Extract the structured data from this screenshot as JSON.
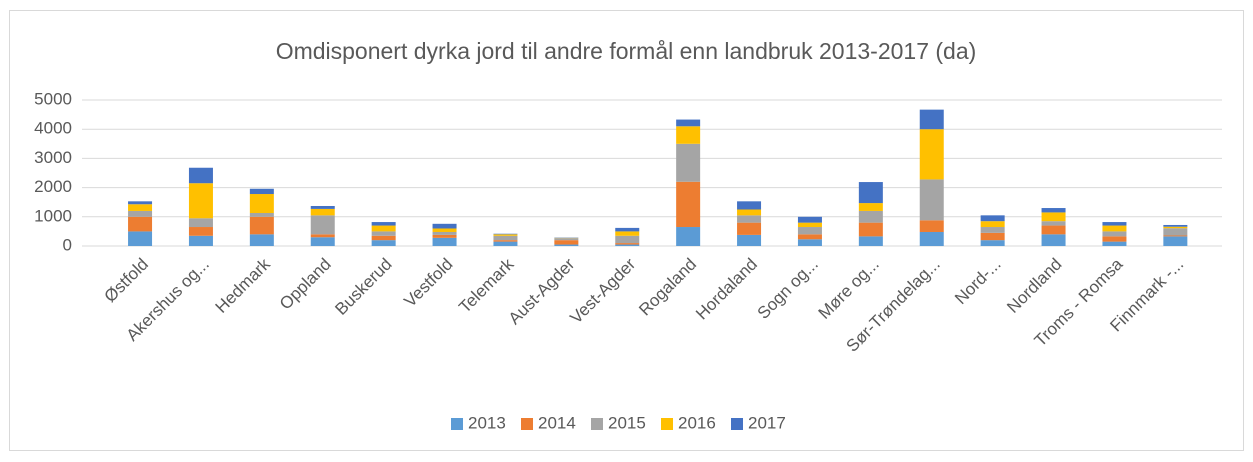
{
  "chart_data": {
    "type": "stacked_bar",
    "title": "Omdisponert dyrka jord til andre formål enn landbruk 2013-2017 (da)",
    "categories": [
      "Østfold",
      "Akershus og...",
      "Hedmark",
      "Oppland",
      "Buskerud",
      "Vestfold",
      "Telemark",
      "Aust-Agder",
      "Vest-Agder",
      "Rogaland",
      "Hordaland",
      "Sogn og...",
      "Møre og...",
      "Sør-Trøndelag...",
      "Nord-...",
      "Nordland",
      "Troms - Romsa",
      "Finnmark -..."
    ],
    "series": [
      {
        "name": "2013",
        "color": "#5b9bd5",
        "values": [
          500,
          350,
          400,
          300,
          200,
          280,
          150,
          50,
          50,
          650,
          380,
          230,
          330,
          480,
          200,
          400,
          150,
          330
        ]
      },
      {
        "name": "2014",
        "color": "#ed7d31",
        "values": [
          500,
          300,
          600,
          100,
          150,
          100,
          50,
          150,
          50,
          1550,
          420,
          170,
          470,
          400,
          250,
          300,
          180,
          30
        ]
      },
      {
        "name": "2015",
        "color": "#a5a5a5",
        "values": [
          200,
          300,
          130,
          650,
          150,
          100,
          150,
          70,
          250,
          1300,
          250,
          250,
          400,
          1400,
          200,
          150,
          170,
          250
        ]
      },
      {
        "name": "2016",
        "color": "#ffc000",
        "values": [
          230,
          1200,
          650,
          220,
          200,
          120,
          50,
          10,
          150,
          600,
          200,
          150,
          270,
          1720,
          200,
          300,
          200,
          50
        ]
      },
      {
        "name": "2017",
        "color": "#4472c4",
        "values": [
          100,
          530,
          180,
          100,
          120,
          160,
          20,
          10,
          120,
          230,
          280,
          200,
          720,
          670,
          200,
          150,
          120,
          60
        ]
      }
    ],
    "ylim": [
      0,
      5000
    ],
    "yticks": [
      0,
      1000,
      2000,
      3000,
      4000,
      5000
    ],
    "grid": true,
    "legend": "bottom"
  }
}
